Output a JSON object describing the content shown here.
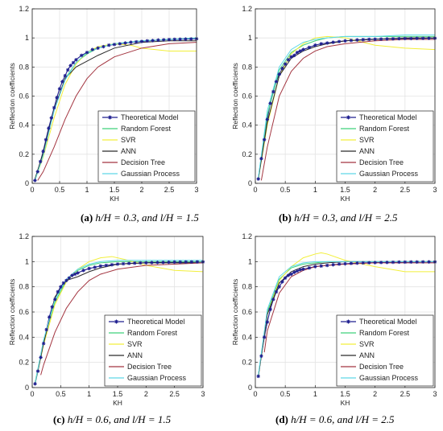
{
  "legend_items": [
    {
      "name": "Theoretical Model",
      "color": "#1f1f8f",
      "marker": "star"
    },
    {
      "name": "Random Forest",
      "color": "#3fd17a",
      "marker": "none"
    },
    {
      "name": "SVR",
      "color": "#f2ef3a",
      "marker": "none"
    },
    {
      "name": "ANN",
      "color": "#2b2b2b",
      "marker": "none"
    },
    {
      "name": "Decision Tree",
      "color": "#a33540",
      "marker": "none"
    },
    {
      "name": "Gaussian Process",
      "color": "#5fd8e8",
      "marker": "none"
    }
  ],
  "captions": [
    {
      "label": "(a)",
      "text": "h/H = 0.3, and l/H = 1.5"
    },
    {
      "label": "(b)",
      "text": "h/H = 0.3, and l/H = 2.5"
    },
    {
      "label": "(c)",
      "text": "h/H = 0.6, and l/H = 1.5"
    },
    {
      "label": "(d)",
      "text": "h/H = 0.6, and l/H = 2.5"
    }
  ],
  "chart_data": [
    {
      "type": "line",
      "xlabel": "KH",
      "ylabel": "Reflection coefficients",
      "xlim": [
        0,
        3
      ],
      "ylim": [
        0,
        1.2
      ],
      "xticks": [
        "0",
        "0.5",
        "1",
        "1.5",
        "2",
        "2.5",
        "3"
      ],
      "yticks": [
        "0",
        "0.2",
        "0.4",
        "0.6",
        "0.8",
        "1",
        "1.2"
      ],
      "grid": true,
      "legend": "bottom-right",
      "series": [
        {
          "name": "Theoretical Model",
          "x": [
            0.05,
            0.1,
            0.15,
            0.2,
            0.25,
            0.3,
            0.35,
            0.4,
            0.45,
            0.5,
            0.55,
            0.6,
            0.65,
            0.7,
            0.75,
            0.8,
            0.9,
            1.0,
            1.1,
            1.2,
            1.3,
            1.4,
            1.5,
            1.6,
            1.7,
            1.8,
            1.9,
            2.0,
            2.1,
            2.2,
            2.3,
            2.4,
            2.5,
            2.6,
            2.7,
            2.8,
            2.9,
            3.0
          ],
          "y": [
            0.02,
            0.08,
            0.15,
            0.22,
            0.3,
            0.38,
            0.45,
            0.52,
            0.59,
            0.65,
            0.7,
            0.74,
            0.78,
            0.81,
            0.83,
            0.85,
            0.88,
            0.9,
            0.92,
            0.93,
            0.94,
            0.95,
            0.955,
            0.96,
            0.965,
            0.97,
            0.973,
            0.976,
            0.98,
            0.982,
            0.985,
            0.987,
            0.989,
            0.99,
            0.991,
            0.992,
            0.993,
            0.994
          ]
        },
        {
          "name": "Random Forest",
          "x": [
            0.05,
            0.2,
            0.4,
            0.6,
            0.8,
            1.0,
            1.2,
            1.5,
            2.0,
            2.5,
            3.0
          ],
          "y": [
            0.03,
            0.2,
            0.5,
            0.72,
            0.83,
            0.89,
            0.93,
            0.96,
            0.98,
            0.99,
            1.0
          ]
        },
        {
          "name": "SVR",
          "x": [
            0.05,
            0.2,
            0.4,
            0.6,
            0.8,
            1.0,
            1.2,
            1.5,
            1.8,
            2.0,
            2.5,
            3.0
          ],
          "y": [
            0.02,
            0.18,
            0.45,
            0.68,
            0.82,
            0.9,
            0.94,
            0.96,
            0.95,
            0.93,
            0.91,
            0.91
          ]
        },
        {
          "name": "ANN",
          "x": [
            0.05,
            0.2,
            0.4,
            0.6,
            0.8,
            1.0,
            1.2,
            1.5,
            2.0,
            2.5,
            3.0
          ],
          "y": [
            0.03,
            0.21,
            0.51,
            0.72,
            0.8,
            0.84,
            0.88,
            0.93,
            0.97,
            0.98,
            0.98
          ]
        },
        {
          "name": "Decision Tree",
          "x": [
            0.1,
            0.2,
            0.4,
            0.6,
            0.8,
            1.0,
            1.2,
            1.5,
            2.0,
            2.5,
            3.0
          ],
          "y": [
            0.02,
            0.08,
            0.25,
            0.44,
            0.6,
            0.72,
            0.8,
            0.87,
            0.93,
            0.96,
            0.97
          ]
        },
        {
          "name": "Gaussian Process",
          "x": [
            0.05,
            0.2,
            0.4,
            0.6,
            0.8,
            1.0,
            1.2,
            1.5,
            2.0,
            2.5,
            3.0
          ],
          "y": [
            0.02,
            0.19,
            0.5,
            0.71,
            0.83,
            0.9,
            0.93,
            0.96,
            0.98,
            0.99,
            1.0
          ]
        }
      ]
    },
    {
      "type": "line",
      "xlabel": "KH",
      "ylabel": "Reflection coefficients",
      "xlim": [
        0,
        3
      ],
      "ylim": [
        0,
        1.2
      ],
      "xticks": [
        "0",
        "0.5",
        "1",
        "1.5",
        "2",
        "2.5",
        "3"
      ],
      "yticks": [
        "0",
        "0.2",
        "0.4",
        "0.6",
        "0.8",
        "1",
        "1.2"
      ],
      "grid": true,
      "legend": "bottom-right",
      "series": [
        {
          "name": "Theoretical Model",
          "x": [
            0.05,
            0.1,
            0.15,
            0.2,
            0.25,
            0.3,
            0.35,
            0.4,
            0.45,
            0.5,
            0.55,
            0.6,
            0.65,
            0.7,
            0.75,
            0.8,
            0.9,
            1.0,
            1.1,
            1.2,
            1.3,
            1.4,
            1.5,
            1.6,
            1.7,
            1.8,
            1.9,
            2.0,
            2.1,
            2.2,
            2.3,
            2.4,
            2.5,
            2.6,
            2.7,
            2.8,
            2.9,
            3.0
          ],
          "y": [
            0.03,
            0.17,
            0.3,
            0.44,
            0.55,
            0.63,
            0.7,
            0.75,
            0.79,
            0.82,
            0.85,
            0.87,
            0.88,
            0.9,
            0.91,
            0.92,
            0.935,
            0.95,
            0.96,
            0.965,
            0.97,
            0.975,
            0.98,
            0.983,
            0.986,
            0.988,
            0.99,
            0.991,
            0.992,
            0.993,
            0.994,
            0.995,
            0.996,
            0.996,
            0.997,
            0.997,
            0.998,
            0.998
          ]
        },
        {
          "name": "Random Forest",
          "x": [
            0.05,
            0.2,
            0.4,
            0.6,
            0.8,
            1.0,
            1.2,
            1.5,
            2.0,
            2.5,
            3.0
          ],
          "y": [
            0.04,
            0.47,
            0.78,
            0.9,
            0.95,
            0.98,
            1.0,
            1.01,
            1.01,
            1.01,
            1.01
          ]
        },
        {
          "name": "SVR",
          "x": [
            0.05,
            0.2,
            0.4,
            0.6,
            0.8,
            1.0,
            1.2,
            1.5,
            1.8,
            2.0,
            2.5,
            3.0
          ],
          "y": [
            0.03,
            0.4,
            0.74,
            0.89,
            0.96,
            1.0,
            1.01,
            1.0,
            0.97,
            0.95,
            0.93,
            0.92
          ]
        },
        {
          "name": "ANN",
          "x": [
            0.05,
            0.2,
            0.4,
            0.6,
            0.8,
            1.0,
            1.2,
            1.5,
            2.0,
            2.5,
            3.0
          ],
          "y": [
            0.03,
            0.42,
            0.74,
            0.86,
            0.91,
            0.94,
            0.96,
            0.98,
            0.99,
            1.0,
            1.0
          ]
        },
        {
          "name": "Decision Tree",
          "x": [
            0.1,
            0.2,
            0.4,
            0.6,
            0.8,
            1.0,
            1.2,
            1.5,
            2.0,
            2.5,
            3.0
          ],
          "y": [
            0.02,
            0.25,
            0.6,
            0.77,
            0.86,
            0.91,
            0.94,
            0.96,
            0.98,
            0.99,
            0.99
          ]
        },
        {
          "name": "Gaussian Process",
          "x": [
            0.05,
            0.2,
            0.4,
            0.6,
            0.8,
            1.0,
            1.2,
            1.5,
            2.0,
            2.5,
            3.0
          ],
          "y": [
            0.04,
            0.5,
            0.8,
            0.92,
            0.97,
            0.99,
            1.0,
            1.01,
            1.01,
            1.02,
            1.02
          ]
        }
      ]
    },
    {
      "type": "line",
      "xlabel": "KH",
      "ylabel": "Reflection coefficients",
      "xlim": [
        0,
        3
      ],
      "ylim": [
        0,
        1.2
      ],
      "xticks": [
        "0",
        "0.5",
        "1",
        "1.5",
        "2",
        "2.5",
        "3"
      ],
      "yticks": [
        "0",
        "0.2",
        "0.4",
        "0.6",
        "0.8",
        "1",
        "1.2"
      ],
      "grid": true,
      "legend": "bottom-right",
      "series": [
        {
          "name": "Theoretical Model",
          "x": [
            0.05,
            0.1,
            0.15,
            0.2,
            0.25,
            0.3,
            0.35,
            0.4,
            0.45,
            0.5,
            0.55,
            0.6,
            0.65,
            0.7,
            0.75,
            0.8,
            0.9,
            1.0,
            1.1,
            1.2,
            1.3,
            1.4,
            1.5,
            1.6,
            1.7,
            1.8,
            1.9,
            2.0,
            2.1,
            2.2,
            2.3,
            2.4,
            2.5,
            2.6,
            2.7,
            2.8,
            2.9,
            3.0
          ],
          "y": [
            0.03,
            0.13,
            0.24,
            0.35,
            0.46,
            0.56,
            0.64,
            0.7,
            0.76,
            0.8,
            0.83,
            0.85,
            0.87,
            0.89,
            0.9,
            0.91,
            0.93,
            0.945,
            0.955,
            0.965,
            0.97,
            0.975,
            0.98,
            0.983,
            0.986,
            0.988,
            0.99,
            0.991,
            0.992,
            0.993,
            0.994,
            0.995,
            0.996,
            0.996,
            0.997,
            0.997,
            0.998,
            0.998
          ]
        },
        {
          "name": "Random Forest",
          "x": [
            0.05,
            0.2,
            0.4,
            0.6,
            0.8,
            1.0,
            1.2,
            1.5,
            2.0,
            2.5,
            3.0
          ],
          "y": [
            0.04,
            0.37,
            0.68,
            0.85,
            0.93,
            0.97,
            0.99,
            1.0,
            1.0,
            1.0,
            1.0
          ]
        },
        {
          "name": "SVR",
          "x": [
            0.05,
            0.2,
            0.4,
            0.6,
            0.8,
            1.0,
            1.2,
            1.4,
            1.6,
            2.0,
            2.5,
            3.0
          ],
          "y": [
            0.03,
            0.34,
            0.66,
            0.84,
            0.94,
            1.0,
            1.03,
            1.04,
            1.02,
            0.97,
            0.93,
            0.92
          ]
        },
        {
          "name": "ANN",
          "x": [
            0.05,
            0.2,
            0.4,
            0.6,
            0.8,
            1.0,
            1.2,
            1.5,
            2.0,
            2.5,
            3.0
          ],
          "y": [
            0.03,
            0.35,
            0.72,
            0.85,
            0.88,
            0.92,
            0.95,
            0.98,
            0.99,
            0.99,
            0.99
          ]
        },
        {
          "name": "Decision Tree",
          "x": [
            0.15,
            0.2,
            0.4,
            0.6,
            0.8,
            1.0,
            1.2,
            1.5,
            2.0,
            2.5,
            3.0
          ],
          "y": [
            0.1,
            0.18,
            0.44,
            0.63,
            0.76,
            0.85,
            0.9,
            0.94,
            0.97,
            0.98,
            0.99
          ]
        },
        {
          "name": "Gaussian Process",
          "x": [
            0.05,
            0.2,
            0.4,
            0.6,
            0.8,
            1.0,
            1.2,
            1.5,
            2.0,
            2.5,
            3.0
          ],
          "y": [
            0.03,
            0.38,
            0.7,
            0.86,
            0.94,
            0.98,
            1.0,
            1.01,
            1.01,
            1.01,
            1.01
          ]
        }
      ]
    },
    {
      "type": "line",
      "xlabel": "KH",
      "ylabel": "Reflection coefficients",
      "xlim": [
        0,
        3
      ],
      "ylim": [
        0,
        1.2
      ],
      "xticks": [
        "0",
        "0.5",
        "1",
        "1.5",
        "2",
        "2.5",
        "3"
      ],
      "yticks": [
        "0",
        "0.2",
        "0.4",
        "0.6",
        "0.8",
        "1",
        "1.2"
      ],
      "grid": true,
      "legend": "bottom-right",
      "series": [
        {
          "name": "Theoretical Model",
          "x": [
            0.05,
            0.1,
            0.15,
            0.2,
            0.25,
            0.3,
            0.35,
            0.4,
            0.45,
            0.5,
            0.55,
            0.6,
            0.65,
            0.7,
            0.75,
            0.8,
            0.9,
            1.0,
            1.1,
            1.2,
            1.3,
            1.4,
            1.5,
            1.6,
            1.7,
            1.8,
            1.9,
            2.0,
            2.1,
            2.2,
            2.3,
            2.4,
            2.5,
            2.6,
            2.7,
            2.8,
            2.9,
            3.0
          ],
          "y": [
            0.09,
            0.25,
            0.4,
            0.52,
            0.62,
            0.7,
            0.76,
            0.8,
            0.84,
            0.87,
            0.89,
            0.9,
            0.915,
            0.925,
            0.935,
            0.94,
            0.95,
            0.96,
            0.965,
            0.97,
            0.975,
            0.98,
            0.983,
            0.986,
            0.988,
            0.99,
            0.991,
            0.992,
            0.993,
            0.994,
            0.995,
            0.996,
            0.996,
            0.997,
            0.997,
            0.998,
            0.998,
            0.998
          ]
        },
        {
          "name": "Random Forest",
          "x": [
            0.05,
            0.2,
            0.4,
            0.6,
            0.8,
            1.0,
            1.2,
            1.5,
            2.0,
            2.5,
            3.0
          ],
          "y": [
            0.1,
            0.6,
            0.86,
            0.95,
            0.98,
            0.99,
            1.0,
            1.0,
            1.0,
            1.0,
            1.0
          ]
        },
        {
          "name": "SVR",
          "x": [
            0.05,
            0.2,
            0.4,
            0.6,
            0.8,
            1.0,
            1.1,
            1.2,
            1.5,
            2.0,
            2.5,
            3.0
          ],
          "y": [
            0.09,
            0.58,
            0.85,
            0.96,
            1.03,
            1.06,
            1.07,
            1.06,
            1.01,
            0.96,
            0.92,
            0.92
          ]
        },
        {
          "name": "ANN",
          "x": [
            0.05,
            0.2,
            0.4,
            0.6,
            0.8,
            1.0,
            1.2,
            1.5,
            2.0,
            2.5,
            3.0
          ],
          "y": [
            0.09,
            0.58,
            0.83,
            0.92,
            0.96,
            0.98,
            0.99,
            1.0,
            1.0,
            1.0,
            1.0
          ]
        },
        {
          "name": "Decision Tree",
          "x": [
            0.15,
            0.2,
            0.4,
            0.6,
            0.8,
            1.0,
            1.2,
            1.5,
            2.0,
            2.5,
            3.0
          ],
          "y": [
            0.28,
            0.45,
            0.75,
            0.88,
            0.93,
            0.96,
            0.97,
            0.98,
            0.99,
            0.99,
            0.99
          ]
        },
        {
          "name": "Gaussian Process",
          "x": [
            0.05,
            0.2,
            0.4,
            0.6,
            0.8,
            1.0,
            1.2,
            1.5,
            2.0,
            2.5,
            3.0
          ],
          "y": [
            0.1,
            0.62,
            0.88,
            0.96,
            0.99,
            1.0,
            1.0,
            1.0,
            1.0,
            1.0,
            1.0
          ]
        }
      ]
    }
  ]
}
